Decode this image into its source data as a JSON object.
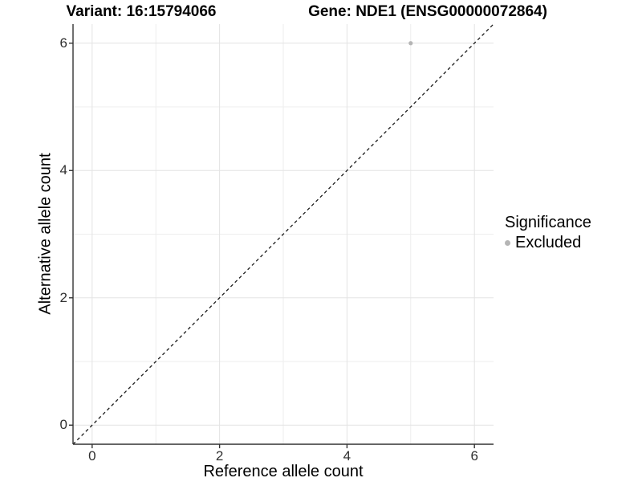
{
  "titles": {
    "variant": "Variant: 16:15794066",
    "gene": "Gene: NDE1 (ENSG00000072864)"
  },
  "chart_data": {
    "type": "scatter",
    "title": "Variant: 16:15794066 — Gene: NDE1 (ENSG00000072864)",
    "xlabel": "Reference allele count",
    "ylabel": "Alternative allele count",
    "xlim": [
      -0.3,
      6.3
    ],
    "ylim": [
      -0.3,
      6.3
    ],
    "xticks": [
      0,
      2,
      4,
      6
    ],
    "yticks": [
      0,
      2,
      4,
      6
    ],
    "x_minor_breaks": [
      1,
      3,
      5
    ],
    "y_minor_breaks": [
      1,
      3,
      5
    ],
    "grid": "on",
    "identity_line": {
      "slope": 1,
      "intercept": 0,
      "style": "dashed"
    },
    "series": [
      {
        "name": "Excluded",
        "points": [
          {
            "x": 5,
            "y": 6
          }
        ]
      }
    ],
    "legend": {
      "title": "Significance",
      "position": "right",
      "items": [
        {
          "label": "Excluded",
          "color": "#b5b5b5"
        }
      ]
    }
  },
  "colors": {
    "background": "#ffffff",
    "grid_major": "#e3e3e3",
    "grid_minor": "#ededed",
    "axis_line": "#333333",
    "tick_mark": "#333333",
    "tick_label": "#303030",
    "identity_line": "#1a1a1a",
    "point": "#b5b5b5",
    "title": "#000000"
  },
  "icons": {
    "legend_dot": "filled-circle"
  }
}
